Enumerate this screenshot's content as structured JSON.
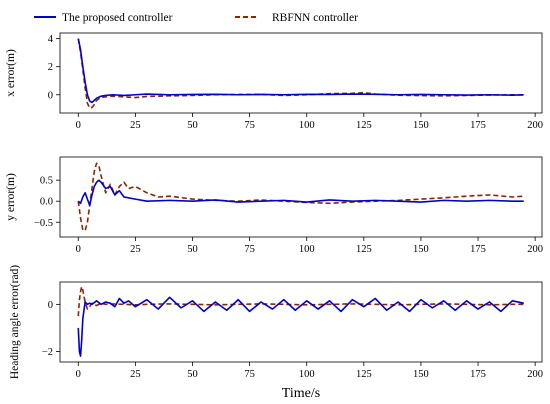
{
  "legend": {
    "entries": [
      {
        "label": "The proposed controller",
        "color": "#0000cc",
        "dash": false
      },
      {
        "label": "RBFNN controller",
        "color": "#8b2500",
        "dash": true
      }
    ]
  },
  "xaxis": {
    "title": "Time/s",
    "ticks": [
      0,
      25,
      50,
      75,
      100,
      125,
      150,
      175,
      200
    ],
    "xlim": [
      -8,
      203
    ]
  },
  "chart_data": [
    {
      "type": "line",
      "ylabel": "x error(m)",
      "ylim": [
        -1.3,
        4.4
      ],
      "yticks": [
        0,
        2,
        4
      ],
      "ytick_labels": [
        "0",
        "2",
        "4"
      ],
      "series": [
        {
          "name": "The proposed controller",
          "x": [
            0,
            1,
            2,
            3,
            4,
            5,
            6,
            7,
            8,
            10,
            12,
            15,
            20,
            25,
            30,
            40,
            50,
            60,
            70,
            80,
            90,
            100,
            110,
            120,
            130,
            140,
            150,
            160,
            170,
            180,
            190,
            195
          ],
          "y": [
            4.0,
            3.2,
            2.0,
            0.9,
            0.0,
            -0.45,
            -0.55,
            -0.4,
            -0.25,
            -0.1,
            -0.05,
            0.0,
            -0.05,
            0.0,
            0.05,
            0.0,
            0.02,
            0.03,
            0.0,
            0.02,
            0.0,
            0.03,
            0.02,
            0.05,
            0.03,
            0.0,
            0.02,
            0.0,
            -0.02,
            0.0,
            -0.03,
            0.0
          ]
        },
        {
          "name": "RBFNN controller",
          "x": [
            0,
            1,
            2,
            3,
            4,
            5,
            6,
            7,
            8,
            10,
            12,
            15,
            20,
            25,
            30,
            40,
            50,
            60,
            70,
            80,
            90,
            100,
            110,
            120,
            125,
            130,
            140,
            150,
            160,
            170,
            180,
            190,
            195
          ],
          "y": [
            4.0,
            3.0,
            1.8,
            0.5,
            -0.6,
            -0.95,
            -0.9,
            -0.7,
            -0.4,
            -0.2,
            -0.15,
            -0.1,
            -0.15,
            -0.2,
            -0.12,
            -0.08,
            -0.05,
            0.0,
            0.02,
            0.03,
            -0.05,
            0.0,
            0.08,
            0.1,
            0.15,
            0.05,
            -0.03,
            -0.06,
            -0.08,
            -0.05,
            -0.02,
            0.0,
            -0.02
          ]
        }
      ]
    },
    {
      "type": "line",
      "ylabel": "y error(m)",
      "ylim": [
        -0.85,
        1.05
      ],
      "yticks": [
        -0.5,
        0.0,
        0.5
      ],
      "ytick_labels": [
        "−0.5",
        "0.0",
        "0.5"
      ],
      "series": [
        {
          "name": "The proposed controller",
          "x": [
            0,
            1,
            2,
            3,
            4,
            5,
            6,
            7,
            8,
            9,
            10,
            12,
            14,
            16,
            18,
            20,
            25,
            30,
            40,
            50,
            60,
            70,
            80,
            90,
            100,
            110,
            120,
            130,
            140,
            150,
            160,
            170,
            180,
            190,
            195
          ],
          "y": [
            0.0,
            -0.05,
            0.1,
            0.2,
            0.05,
            -0.1,
            0.15,
            0.35,
            0.45,
            0.5,
            0.45,
            0.3,
            0.35,
            0.15,
            0.25,
            0.1,
            0.05,
            0.0,
            0.02,
            0.0,
            0.03,
            -0.02,
            0.0,
            0.02,
            -0.02,
            0.03,
            0.0,
            0.02,
            0.0,
            -0.02,
            0.02,
            0.0,
            0.02,
            0.0,
            0.0
          ]
        },
        {
          "name": "RBFNN controller",
          "x": [
            0,
            1,
            2,
            3,
            4,
            5,
            6,
            7,
            8,
            9,
            10,
            12,
            14,
            16,
            18,
            20,
            22,
            25,
            30,
            35,
            40,
            50,
            60,
            70,
            80,
            90,
            100,
            110,
            120,
            130,
            140,
            150,
            160,
            170,
            180,
            190,
            195
          ],
          "y": [
            0.0,
            -0.4,
            -0.68,
            -0.7,
            -0.5,
            -0.1,
            0.3,
            0.7,
            0.9,
            0.85,
            0.6,
            0.2,
            0.4,
            0.15,
            0.35,
            0.45,
            0.3,
            0.35,
            0.2,
            0.1,
            0.12,
            0.05,
            0.02,
            0.0,
            0.03,
            0.0,
            -0.03,
            -0.05,
            -0.02,
            0.0,
            0.02,
            0.05,
            0.08,
            0.12,
            0.15,
            0.1,
            0.12
          ]
        }
      ]
    },
    {
      "type": "line",
      "ylabel": "Heading angle error(rad)",
      "ylim": [
        -2.45,
        0.95
      ],
      "yticks": [
        -2,
        0
      ],
      "ytick_labels": [
        "−2",
        "0"
      ],
      "series": [
        {
          "name": "The proposed controller",
          "x": [
            0,
            0.5,
            1,
            1.5,
            2,
            3,
            4,
            5,
            6,
            8,
            10,
            12,
            14,
            16,
            18,
            20,
            22,
            25,
            30,
            35,
            40,
            45,
            50,
            55,
            60,
            65,
            70,
            75,
            80,
            85,
            90,
            95,
            100,
            105,
            110,
            115,
            120,
            125,
            130,
            135,
            140,
            145,
            150,
            155,
            160,
            165,
            170,
            175,
            180,
            185,
            190,
            195
          ],
          "y": [
            -1.0,
            -2.0,
            -2.2,
            -1.5,
            -0.6,
            0.1,
            0.0,
            0.05,
            0.0,
            0.15,
            0.0,
            0.1,
            0.05,
            -0.1,
            0.25,
            0.05,
            0.15,
            -0.1,
            0.2,
            -0.2,
            0.3,
            -0.15,
            0.15,
            -0.3,
            0.1,
            -0.25,
            0.2,
            -0.3,
            0.1,
            -0.2,
            0.2,
            -0.25,
            0.15,
            -0.2,
            0.15,
            -0.3,
            0.2,
            -0.1,
            0.25,
            -0.25,
            0.1,
            -0.3,
            0.2,
            -0.15,
            0.15,
            -0.25,
            0.15,
            -0.2,
            0.1,
            -0.3,
            0.15,
            0.05
          ]
        },
        {
          "name": "RBFNN controller",
          "x": [
            0,
            0.5,
            1,
            1.5,
            2,
            3,
            4,
            5,
            6,
            7,
            8,
            10,
            12,
            15,
            20,
            25,
            30,
            40,
            50,
            60,
            70,
            80,
            90,
            100,
            110,
            120,
            130,
            140,
            150,
            160,
            170,
            180,
            190,
            195
          ],
          "y": [
            -0.5,
            0.2,
            0.55,
            0.75,
            0.6,
            0.1,
            -0.2,
            -0.1,
            0.05,
            0.0,
            -0.05,
            0.05,
            0.0,
            0.02,
            0.0,
            -0.02,
            0.0,
            0.02,
            0.0,
            -0.02,
            0.0,
            0.02,
            0.0,
            -0.02,
            0.0,
            0.02,
            0.0,
            -0.02,
            0.0,
            0.02,
            0.0,
            -0.02,
            0.0,
            0.0
          ]
        }
      ]
    }
  ]
}
